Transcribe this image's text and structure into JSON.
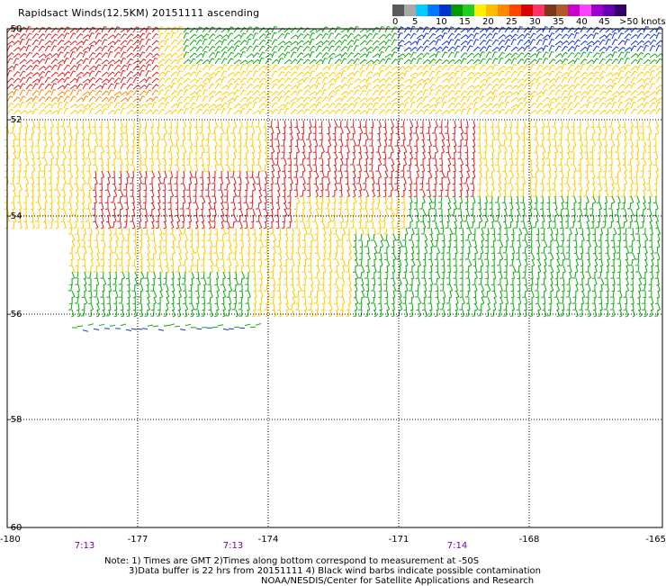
{
  "title": "Rapidsact Winds(12.5KM) 20151111 ascending",
  "scale": {
    "labels": [
      "0",
      "5",
      "10",
      "15",
      "20",
      "25",
      "30",
      "35",
      "40",
      "45",
      ">50 knots"
    ],
    "colors": [
      "#5a5a5a",
      "#a8a8a8",
      "#00ccff",
      "#0077ff",
      "#0033cc",
      "#009900",
      "#22cc22",
      "#ffee00",
      "#ffbb00",
      "#ff8800",
      "#ff4400",
      "#dd0000",
      "#ff3366",
      "#7a3a1a",
      "#b05a2a",
      "#cc00cc",
      "#ff44ff",
      "#9900cc",
      "#6600aa",
      "#330066"
    ]
  },
  "lat_labels": [
    "-50",
    "-52",
    "-54",
    "-56",
    "-58",
    "-60"
  ],
  "lon_labels": [
    "-180",
    "-177",
    "-174",
    "-171",
    "-168",
    "-165"
  ],
  "time_labels": [
    "7:13",
    "7:13",
    "7:14"
  ],
  "footer": {
    "line1": "Note: 1) Times are GMT 2)Times along bottom correspond to measurement at -50S",
    "line2": "3)Data buffer is 22 hrs from 20151111 4) Black wind barbs indicate possible contamination",
    "line3": "NOAA/NESDIS/Center for Satellite Applications and Research"
  },
  "colors": {
    "grid": "#000000",
    "time_label": "#7700aa",
    "speed_red": "#e02020",
    "speed_orange": "#ff8800",
    "speed_yellow": "#ffcc00",
    "speed_green": "#11aa11",
    "speed_blue": "#1133dd"
  }
}
